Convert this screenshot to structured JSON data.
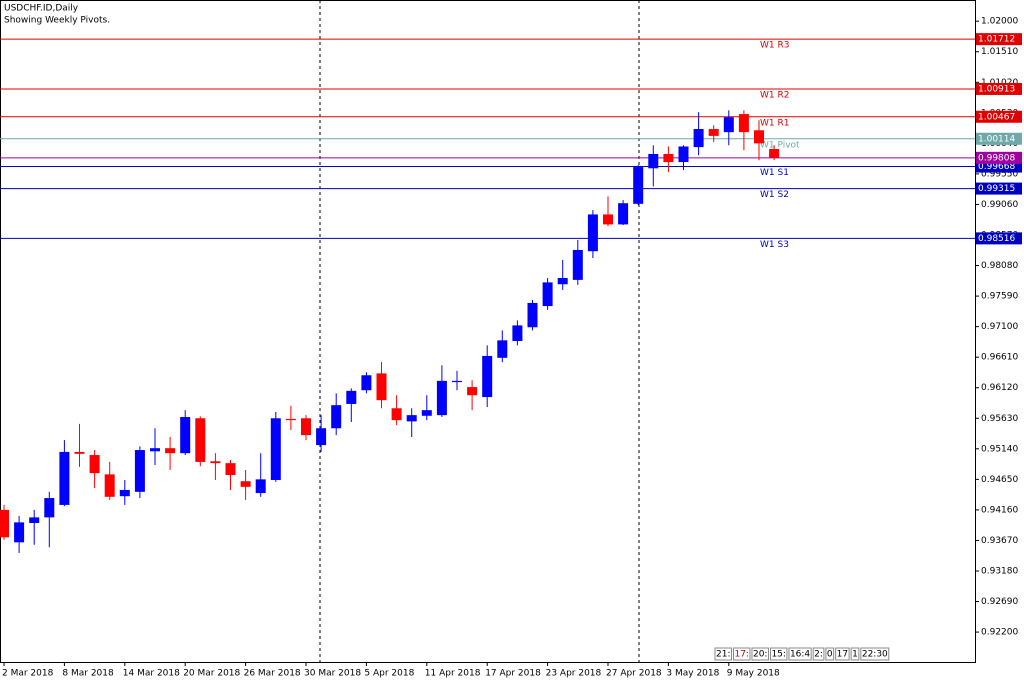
{
  "chart_data": {
    "type": "candlestick",
    "title": "USDCHF.ID,Daily",
    "subtitle": "Showing Weekly Pivots.",
    "up_color": "#0000ff",
    "down_color": "#ff0000",
    "ylim": [
      0.9172,
      1.0234
    ],
    "yticks": [
      {
        "value": 1.02,
        "label": "1.02000"
      },
      {
        "value": 1.0151,
        "label": "1.01510"
      },
      {
        "value": 1.0102,
        "label": "1.01020"
      },
      {
        "value": 1.0053,
        "label": "1.00530"
      },
      {
        "value": 1.0004,
        "label": "1.00040"
      },
      {
        "value": 0.9955,
        "label": "0.99550"
      },
      {
        "value": 0.9906,
        "label": "0.99060"
      },
      {
        "value": 0.9857,
        "label": "0.98570"
      },
      {
        "value": 0.9808,
        "label": "0.98080"
      },
      {
        "value": 0.9759,
        "label": "0.97590"
      },
      {
        "value": 0.971,
        "label": "0.97100"
      },
      {
        "value": 0.9661,
        "label": "0.96610"
      },
      {
        "value": 0.9612,
        "label": "0.96120"
      },
      {
        "value": 0.9563,
        "label": "0.95630"
      },
      {
        "value": 0.9514,
        "label": "0.95140"
      },
      {
        "value": 0.9465,
        "label": "0.94650"
      },
      {
        "value": 0.9416,
        "label": "0.94160"
      },
      {
        "value": 0.9367,
        "label": "0.93670"
      },
      {
        "value": 0.9318,
        "label": "0.93180"
      },
      {
        "value": 0.9269,
        "label": "0.92690"
      },
      {
        "value": 0.922,
        "label": "0.92200"
      }
    ],
    "x_labels": [
      "2 Mar 2018",
      "8 Mar 2018",
      "14 Mar 2018",
      "20 Mar 2018",
      "26 Mar 2018",
      "30 Mar 2018",
      "5 Apr 2018",
      "11 Apr 2018",
      "17 Apr 2018",
      "23 Apr 2018",
      "27 Apr 2018",
      "3 May 2018",
      "9 May 2018"
    ],
    "open": [
      0.9416,
      0.9364,
      0.9395,
      0.9404,
      0.9424,
      0.9509,
      0.9504,
      0.9473,
      0.9438,
      0.9445,
      0.951,
      0.9515,
      0.9507,
      0.9563,
      0.9494,
      0.9491,
      0.9462,
      0.9443,
      0.9464,
      0.9562,
      0.9563,
      0.952,
      0.9547,
      0.9586,
      0.9608,
      0.9635,
      0.9579,
      0.9558,
      0.9567,
      0.9568,
      0.9621,
      0.9613,
      0.9597,
      0.966,
      0.9687,
      0.9709,
      0.9743,
      0.9778,
      0.9785,
      0.9831,
      0.989,
      0.9874,
      0.9907,
      0.9964,
      0.9987,
      0.9974,
      0.9998,
      1.0027,
      1.0022,
      1.0051,
      1.0025,
      0.9995
    ],
    "high": [
      0.9424,
      0.9406,
      0.9416,
      0.9445,
      0.9528,
      0.9554,
      0.9512,
      0.9493,
      0.9464,
      0.9518,
      0.9547,
      0.9533,
      0.9576,
      0.9566,
      0.9507,
      0.9496,
      0.948,
      0.9507,
      0.9573,
      0.9583,
      0.9568,
      0.9568,
      0.9603,
      0.9611,
      0.9637,
      0.9653,
      0.96,
      0.9579,
      0.96,
      0.9648,
      0.9639,
      0.9624,
      0.968,
      0.9704,
      0.972,
      0.9753,
      0.9788,
      0.9817,
      0.9849,
      0.9897,
      0.9919,
      0.9913,
      0.9969,
      1.0001,
      0.9999,
      1.0001,
      1.0054,
      1.0033,
      1.0057,
      1.0057,
      1.0041,
      1.0001
    ],
    "low": [
      0.9368,
      0.9347,
      0.936,
      0.9356,
      0.9422,
      0.9485,
      0.9451,
      0.9432,
      0.9424,
      0.9435,
      0.9488,
      0.948,
      0.9504,
      0.9486,
      0.9464,
      0.9448,
      0.9432,
      0.9437,
      0.9461,
      0.9544,
      0.9528,
      0.9509,
      0.9536,
      0.9557,
      0.9603,
      0.9579,
      0.9552,
      0.9533,
      0.956,
      0.9565,
      0.9608,
      0.9576,
      0.9581,
      0.9653,
      0.968,
      0.9704,
      0.9737,
      0.9769,
      0.9777,
      0.982,
      0.9871,
      0.9873,
      0.9905,
      0.9935,
      0.9958,
      0.9961,
      0.9985,
      1.0006,
      1.0001,
      0.9993,
      0.9977,
      0.9977
    ],
    "close": [
      0.9372,
      0.9396,
      0.9404,
      0.9435,
      0.9509,
      0.9506,
      0.9475,
      0.9437,
      0.9448,
      0.9512,
      0.9515,
      0.9507,
      0.9565,
      0.9493,
      0.9491,
      0.9472,
      0.9453,
      0.9465,
      0.9563,
      0.956,
      0.9536,
      0.9547,
      0.9584,
      0.9607,
      0.9632,
      0.9592,
      0.956,
      0.9568,
      0.9576,
      0.9623,
      0.9623,
      0.96,
      0.9663,
      0.9688,
      0.9712,
      0.9748,
      0.9781,
      0.9788,
      0.9833,
      0.989,
      0.9874,
      0.9908,
      0.9966,
      0.9987,
      0.9974,
      0.9999,
      1.0027,
      1.0016,
      1.0046,
      1.0022,
      1.0004,
      0.9981
    ],
    "levels": [
      {
        "name": "W1 R3",
        "value": 1.01712,
        "color": "#e00000"
      },
      {
        "name": "W1 R2",
        "value": 1.00913,
        "color": "#e00000"
      },
      {
        "name": "W1 R1",
        "value": 1.00467,
        "color": "#e00000"
      },
      {
        "name": "W1 Pivot",
        "value": 1.00114,
        "color": "#6fa8a8"
      },
      {
        "name": "W1 S1",
        "value": 0.99668,
        "color": "#0000c0"
      },
      {
        "name": "W1 S2",
        "value": 0.99315,
        "color": "#0000c0"
      },
      {
        "name": "W1 S3",
        "value": 0.98516,
        "color": "#0000c0"
      }
    ],
    "current_price": 0.99808,
    "current_price_color": "#a000a0",
    "clock": [
      "21:",
      "17:",
      "20:",
      "15:",
      "16:4",
      "2:",
      "0",
      "17",
      "1",
      "22:30"
    ]
  }
}
